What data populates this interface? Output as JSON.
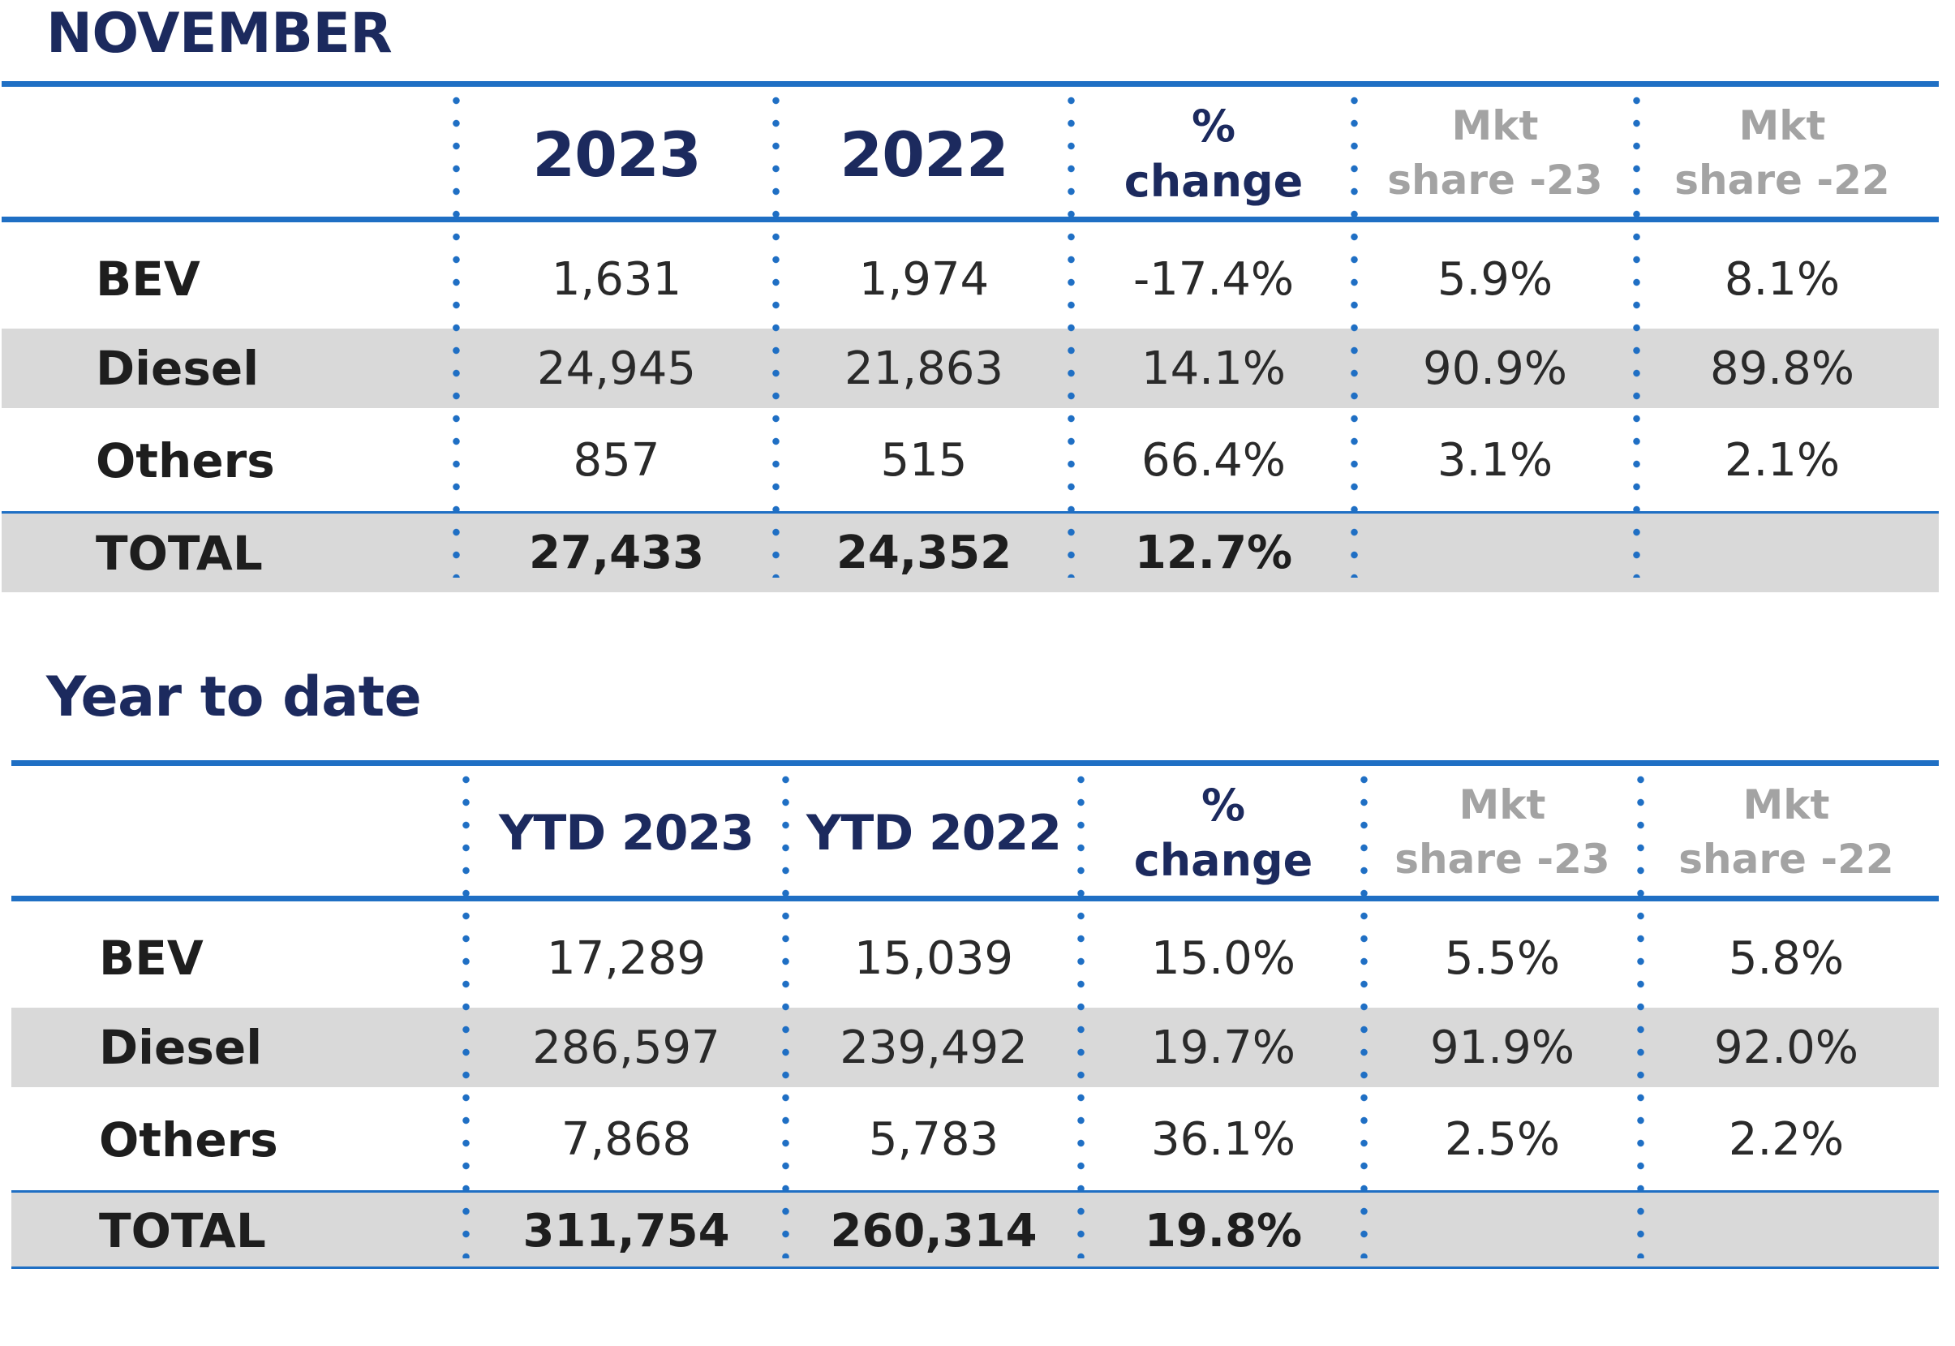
{
  "november": {
    "title": "NOVEMBER",
    "headers": {
      "col1": "2023",
      "col2": "2022",
      "change_line1": "%",
      "change_line2": "change",
      "mkt23_line1": "Mkt",
      "mkt23_line2": "share -23",
      "mkt22_line1": "Mkt",
      "mkt22_line2": "share -22"
    },
    "rows": [
      {
        "label": "BEV",
        "y2023": "1,631",
        "y2022": "1,974",
        "change": "-17.4%",
        "share23": "5.9%",
        "share22": "8.1%"
      },
      {
        "label": "Diesel",
        "y2023": "24,945",
        "y2022": "21,863",
        "change": "14.1%",
        "share23": "90.9%",
        "share22": "89.8%"
      },
      {
        "label": "Others",
        "y2023": "857",
        "y2022": "515",
        "change": "66.4%",
        "share23": "3.1%",
        "share22": "2.1%"
      }
    ],
    "total": {
      "label": "TOTAL",
      "y2023": "27,433",
      "y2022": "24,352",
      "change": "12.7%"
    }
  },
  "ytd": {
    "title": "Year to date",
    "headers": {
      "col1": "YTD 2023",
      "col2": "YTD 2022",
      "change_line1": "%",
      "change_line2": "change",
      "mkt23_line1": "Mkt",
      "mkt23_line2": "share -23",
      "mkt22_line1": "Mkt",
      "mkt22_line2": "share -22"
    },
    "rows": [
      {
        "label": "BEV",
        "y2023": "17,289",
        "y2022": "15,039",
        "change": "15.0%",
        "share23": "5.5%",
        "share22": "5.8%"
      },
      {
        "label": "Diesel",
        "y2023": "286,597",
        "y2022": "239,492",
        "change": "19.7%",
        "share23": "91.9%",
        "share22": "92.0%"
      },
      {
        "label": "Others",
        "y2023": "7,868",
        "y2022": "5,783",
        "change": "36.1%",
        "share23": "2.5%",
        "share22": "2.2%"
      }
    ],
    "total": {
      "label": "TOTAL",
      "y2023": "311,754",
      "y2022": "260,314",
      "change": "19.8%"
    }
  },
  "colors": {
    "title": "#1c2a5e",
    "rule": "#1f6fc4",
    "band": "#d9d9d9",
    "mkt_header": "#a3a3a3"
  }
}
